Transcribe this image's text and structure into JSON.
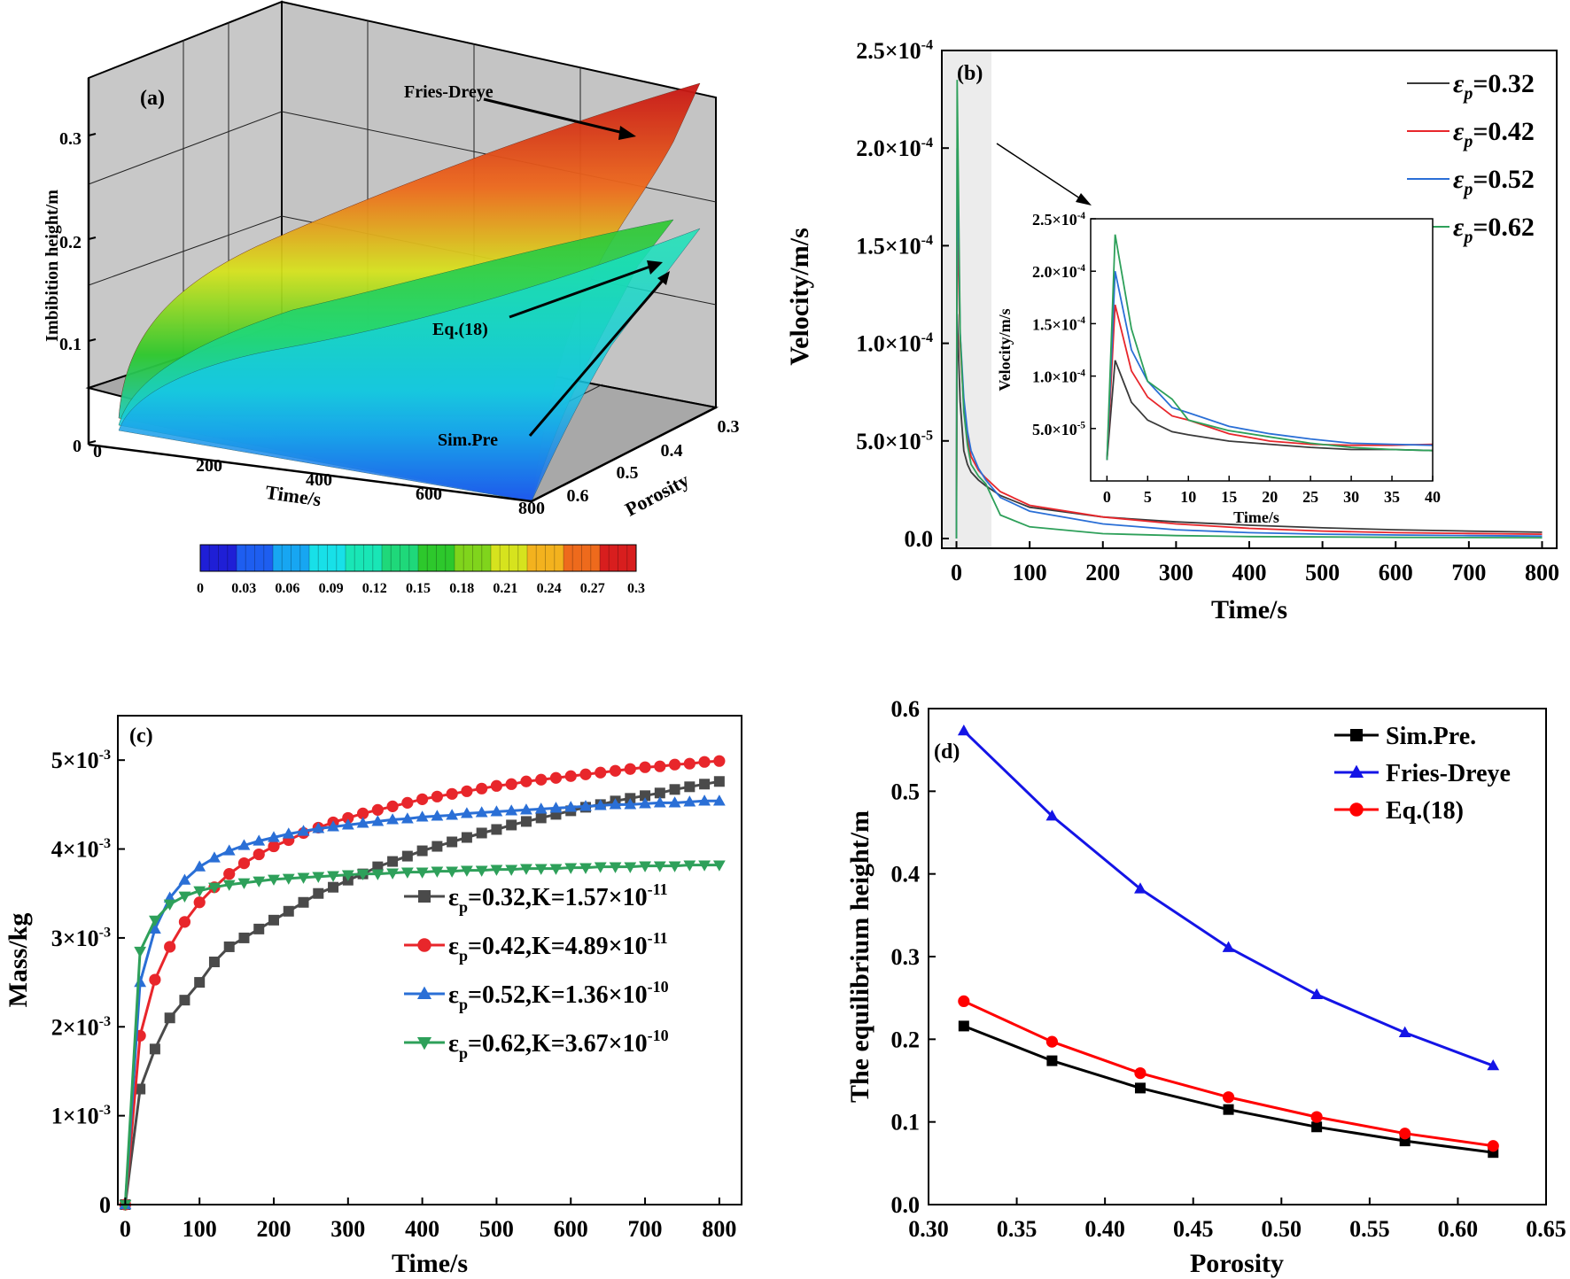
{
  "chart_data": [
    {
      "id": "a",
      "type": "surface3d",
      "panel_label": "(a)",
      "zlabel": "Imbibition height/m",
      "xlabel": "Time/s",
      "ylabel": "Porosity",
      "x_ticks": [
        "0",
        "200",
        "400",
        "600",
        "800"
      ],
      "y_ticks": [
        "0.3",
        "0.4",
        "0.5",
        "0.6"
      ],
      "z_ticks": [
        "0",
        "0.1",
        "0.2",
        "0.3"
      ],
      "annotations": [
        "Fries-Dreye",
        "Eq.(18)",
        "Sim.Pre"
      ],
      "colorbar_ticks": [
        "0",
        "0.03",
        "0.06",
        "0.09",
        "0.12",
        "0.15",
        "0.18",
        "0.21",
        "0.24",
        "0.27",
        "0.3"
      ],
      "colorbar_colors": [
        "#1f1fd6",
        "#1e5ef0",
        "#17a6f2",
        "#18e0e8",
        "#19e6b6",
        "#1fd87a",
        "#2dc82c",
        "#80d41c",
        "#d6e31e",
        "#f3b21e",
        "#ee6a1c",
        "#d81e1e"
      ],
      "surfaces": [
        {
          "name": "Fries-Dreye",
          "max_height": 0.35
        },
        {
          "name": "Eq.(18)",
          "max_height": 0.22
        },
        {
          "name": "Sim.Pre",
          "max_height": 0.19
        }
      ]
    },
    {
      "id": "b",
      "type": "line",
      "panel_label": "(b)",
      "xlabel": "Time/s",
      "ylabel": "Velocity/m/s",
      "xlim": [
        -20,
        820
      ],
      "ylim": [
        -5e-06,
        0.00025
      ],
      "x_ticks": [
        "0",
        "100",
        "200",
        "300",
        "400",
        "500",
        "600",
        "700",
        "800"
      ],
      "y_ticks": [
        {
          "mant": "0.0",
          "exp": ""
        },
        {
          "mant": "5.0×10",
          "exp": "-5"
        },
        {
          "mant": "1.0×10",
          "exp": "-4"
        },
        {
          "mant": "1.5×10",
          "exp": "-4"
        },
        {
          "mant": "2.0×10",
          "exp": "-4"
        },
        {
          "mant": "2.5×10",
          "exp": "-4"
        }
      ],
      "legend": [
        {
          "prefix": "ε",
          "sub": "p",
          "suffix": "=0.32",
          "color": "#3a3a3a"
        },
        {
          "prefix": "ε",
          "sub": "p",
          "suffix": "=0.42",
          "color": "#e8262b"
        },
        {
          "prefix": "ε",
          "sub": "p",
          "suffix": "=0.52",
          "color": "#2a6fd6"
        },
        {
          "prefix": "ε",
          "sub": "p",
          "suffix": "=0.62",
          "color": "#2ea05a"
        }
      ],
      "series": [
        {
          "name": "εp=0.32",
          "color": "#3a3a3a",
          "x": [
            0,
            1,
            5,
            10,
            15,
            20,
            30,
            40,
            60,
            100,
            200,
            300,
            400,
            500,
            600,
            700,
            800
          ],
          "y": [
            0,
            0.000115,
            7e-05,
            4.5e-05,
            3.8e-05,
            3.4e-05,
            3e-05,
            2.7e-05,
            2.2e-05,
            1.6e-05,
            1.1e-05,
            8.5e-06,
            6.8e-06,
            5.5e-06,
            4.5e-06,
            3.8e-06,
            3.2e-06
          ]
        },
        {
          "name": "εp=0.42",
          "color": "#e8262b",
          "x": [
            0,
            1,
            5,
            10,
            15,
            20,
            30,
            40,
            60,
            100,
            200,
            300,
            400,
            500,
            600,
            700,
            800
          ],
          "y": [
            0,
            0.000168,
            0.0001,
            6.8e-05,
            5.2e-05,
            4.2e-05,
            3.5e-05,
            3.1e-05,
            2.4e-05,
            1.7e-05,
            1.1e-05,
            7.5e-06,
            5.2e-06,
            3.8e-06,
            3e-06,
            2.6e-06,
            2.2e-06
          ]
        },
        {
          "name": "εp=0.52",
          "color": "#2a6fd6",
          "x": [
            0,
            1,
            5,
            10,
            15,
            20,
            30,
            40,
            60,
            100,
            200,
            300,
            400,
            500,
            600,
            700,
            800
          ],
          "y": [
            0,
            0.0002,
            0.000105,
            7.2e-05,
            5.5e-05,
            4.5e-05,
            3.6e-05,
            3e-05,
            2.1e-05,
            1.4e-05,
            7.5e-06,
            4.5e-06,
            3e-06,
            2.2e-06,
            1.8e-06,
            1.5e-06,
            1.2e-06
          ]
        },
        {
          "name": "εp=0.62",
          "color": "#2ea05a",
          "x": [
            0,
            1,
            5,
            10,
            15,
            20,
            30,
            40,
            60,
            100,
            200,
            300,
            400,
            500,
            600,
            700,
            800
          ],
          "y": [
            0,
            0.000235,
            0.000105,
            6.5e-05,
            4.8e-05,
            3.8e-05,
            3.2e-05,
            2.8e-05,
            1.2e-05,
            6e-06,
            2.5e-06,
            1.5e-06,
            1e-06,
            8e-07,
            6e-07,
            5e-07,
            4e-07
          ]
        }
      ],
      "inset": {
        "xlabel": "Time/s",
        "ylabel": "Velocity/m/s",
        "xlim": [
          -2,
          40
        ],
        "ylim": [
          0,
          0.00025
        ],
        "x_ticks": [
          "0",
          "5",
          "10",
          "15",
          "20",
          "25",
          "30",
          "35",
          "40"
        ],
        "y_ticks": [
          {
            "mant": "5.0×10",
            "exp": "-5"
          },
          {
            "mant": "1.0×10",
            "exp": "-4"
          },
          {
            "mant": "1.5×10",
            "exp": "-4"
          },
          {
            "mant": "2.0×10",
            "exp": "-4"
          },
          {
            "mant": "2.5×10",
            "exp": "-4"
          }
        ],
        "series": [
          {
            "name": "εp=0.32",
            "color": "#3a3a3a",
            "x": [
              0,
              1,
              3,
              5,
              8,
              10,
              15,
              20,
              25,
              30,
              35,
              40
            ],
            "y": [
              2e-05,
              0.000115,
              7.5e-05,
              5.8e-05,
              4.7e-05,
              4.4e-05,
              3.8e-05,
              3.5e-05,
              3.2e-05,
              3e-05,
              3e-05,
              2.9e-05
            ]
          },
          {
            "name": "εp=0.42",
            "color": "#e8262b",
            "x": [
              0,
              1,
              3,
              5,
              8,
              10,
              15,
              20,
              25,
              30,
              35,
              40
            ],
            "y": [
              2e-05,
              0.000168,
              0.000105,
              8e-05,
              6.2e-05,
              5.8e-05,
              4.5e-05,
              3.8e-05,
              3.5e-05,
              3.4e-05,
              3.4e-05,
              3.5e-05
            ]
          },
          {
            "name": "εp=0.52",
            "color": "#2a6fd6",
            "x": [
              0,
              1,
              3,
              5,
              8,
              10,
              15,
              20,
              25,
              30,
              35,
              40
            ],
            "y": [
              2e-05,
              0.0002,
              0.000125,
              9.5e-05,
              7e-05,
              6.5e-05,
              5.2e-05,
              4.5e-05,
              4e-05,
              3.6e-05,
              3.5e-05,
              3.4e-05
            ]
          },
          {
            "name": "εp=0.62",
            "color": "#2ea05a",
            "x": [
              0,
              1,
              3,
              5,
              8,
              10,
              15,
              20,
              25,
              30,
              35,
              40
            ],
            "y": [
              2e-05,
              0.000235,
              0.000145,
              9.5e-05,
              7.8e-05,
              5.8e-05,
              4.8e-05,
              4.2e-05,
              3.6e-05,
              3.2e-05,
              3e-05,
              2.9e-05
            ]
          }
        ]
      }
    },
    {
      "id": "c",
      "type": "line",
      "panel_label": "(c)",
      "xlabel": "Time/s",
      "ylabel": "Mass/kg",
      "xlim": [
        -10,
        830
      ],
      "ylim": [
        0,
        0.0055
      ],
      "x_ticks": [
        "0",
        "100",
        "200",
        "300",
        "400",
        "500",
        "600",
        "700",
        "800"
      ],
      "y_ticks": [
        {
          "mant": "0",
          "exp": ""
        },
        {
          "mant": "1×10",
          "exp": "-3"
        },
        {
          "mant": "2×10",
          "exp": "-3"
        },
        {
          "mant": "3×10",
          "exp": "-3"
        },
        {
          "mant": "4×10",
          "exp": "-3"
        },
        {
          "mant": "5×10",
          "exp": "-3"
        }
      ],
      "legend": [
        {
          "prefix": "ε",
          "sub": "p",
          "suffix": "=0.32,K=1.57×10",
          "exp": "-11",
          "color": "#4a4a4a",
          "marker": "square"
        },
        {
          "prefix": "ε",
          "sub": "p",
          "suffix": "=0.42,K=4.89×10",
          "exp": "-11",
          "color": "#e8262b",
          "marker": "circle"
        },
        {
          "prefix": "ε",
          "sub": "p",
          "suffix": "=0.52,K=1.36×10",
          "exp": "-10",
          "color": "#2a6fd6",
          "marker": "triangle-up"
        },
        {
          "prefix": "ε",
          "sub": "p",
          "suffix": "=0.62,K=3.67×10",
          "exp": "-10",
          "color": "#2ea05a",
          "marker": "triangle-down"
        }
      ],
      "series": [
        {
          "name": "εp=0.32,K=1.57×10-11",
          "color": "#4a4a4a",
          "marker": "square",
          "x": [
            0,
            20,
            40,
            60,
            80,
            100,
            120,
            140,
            160,
            180,
            200,
            220,
            240,
            260,
            280,
            300,
            320,
            340,
            360,
            380,
            400,
            420,
            440,
            460,
            480,
            500,
            520,
            540,
            560,
            580,
            600,
            620,
            640,
            660,
            680,
            700,
            720,
            740,
            760,
            780,
            800
          ],
          "y": [
            0,
            0.0013,
            0.00175,
            0.0021,
            0.0023,
            0.0025,
            0.00273,
            0.0029,
            0.003,
            0.0031,
            0.0032,
            0.0033,
            0.0034,
            0.0035,
            0.00357,
            0.00365,
            0.00372,
            0.0038,
            0.00386,
            0.00392,
            0.00398,
            0.00403,
            0.00408,
            0.00413,
            0.00418,
            0.00422,
            0.00427,
            0.00431,
            0.00435,
            0.00439,
            0.00443,
            0.00447,
            0.0045,
            0.00454,
            0.00457,
            0.0046,
            0.00463,
            0.00467,
            0.0047,
            0.00473,
            0.00476
          ]
        },
        {
          "name": "εp=0.42,K=4.89×10-11",
          "color": "#e8262b",
          "marker": "circle",
          "x": [
            0,
            20,
            40,
            60,
            80,
            100,
            120,
            140,
            160,
            180,
            200,
            220,
            240,
            260,
            280,
            300,
            320,
            340,
            360,
            380,
            400,
            420,
            440,
            460,
            480,
            500,
            520,
            540,
            560,
            580,
            600,
            620,
            640,
            660,
            680,
            700,
            720,
            740,
            760,
            780,
            800
          ],
          "y": [
            0,
            0.0019,
            0.00253,
            0.0029,
            0.00318,
            0.0034,
            0.00357,
            0.00372,
            0.00384,
            0.00394,
            0.00403,
            0.0041,
            0.00418,
            0.00424,
            0.0043,
            0.00435,
            0.0044,
            0.00444,
            0.00448,
            0.00452,
            0.00456,
            0.00459,
            0.00462,
            0.00465,
            0.00468,
            0.00471,
            0.00473,
            0.00476,
            0.00478,
            0.0048,
            0.00482,
            0.00484,
            0.00486,
            0.00488,
            0.0049,
            0.00492,
            0.00493,
            0.00495,
            0.00496,
            0.00498,
            0.00499
          ]
        },
        {
          "name": "εp=0.52,K=1.36×10-10",
          "color": "#2a6fd6",
          "marker": "triangle-up",
          "x": [
            0,
            20,
            40,
            60,
            80,
            100,
            120,
            140,
            160,
            180,
            200,
            220,
            240,
            260,
            280,
            300,
            320,
            340,
            360,
            380,
            400,
            420,
            440,
            460,
            480,
            500,
            520,
            540,
            560,
            580,
            600,
            620,
            640,
            660,
            680,
            700,
            720,
            740,
            760,
            780,
            800
          ],
          "y": [
            0,
            0.0025,
            0.0031,
            0.00345,
            0.00365,
            0.0038,
            0.0039,
            0.00398,
            0.00404,
            0.00409,
            0.00413,
            0.00417,
            0.0042,
            0.00423,
            0.00425,
            0.00427,
            0.00429,
            0.00431,
            0.00433,
            0.00434,
            0.00436,
            0.00437,
            0.00438,
            0.0044,
            0.00441,
            0.00442,
            0.00443,
            0.00444,
            0.00445,
            0.00446,
            0.00447,
            0.00448,
            0.00449,
            0.0045,
            0.0045,
            0.00451,
            0.00452,
            0.00452,
            0.00453,
            0.00454,
            0.00454
          ]
        },
        {
          "name": "εp=0.62,K=3.67×10-10",
          "color": "#2ea05a",
          "marker": "triangle-down",
          "x": [
            0,
            20,
            40,
            60,
            80,
            100,
            120,
            140,
            160,
            180,
            200,
            220,
            240,
            260,
            280,
            300,
            320,
            340,
            360,
            380,
            400,
            420,
            440,
            460,
            480,
            500,
            520,
            540,
            560,
            580,
            600,
            620,
            640,
            660,
            680,
            700,
            720,
            740,
            760,
            780,
            800
          ],
          "y": [
            0,
            0.00285,
            0.0032,
            0.00338,
            0.00347,
            0.00353,
            0.00357,
            0.0036,
            0.00362,
            0.00364,
            0.00366,
            0.00367,
            0.00368,
            0.00369,
            0.0037,
            0.00371,
            0.00372,
            0.00372,
            0.00373,
            0.00374,
            0.00374,
            0.00375,
            0.00375,
            0.00376,
            0.00376,
            0.00377,
            0.00377,
            0.00378,
            0.00378,
            0.00378,
            0.00379,
            0.00379,
            0.0038,
            0.0038,
            0.0038,
            0.00381,
            0.00381,
            0.00381,
            0.00382,
            0.00382,
            0.00382
          ]
        }
      ]
    },
    {
      "id": "d",
      "type": "line",
      "panel_label": "(d)",
      "xlabel": "Porosity",
      "ylabel": "The equilibrium height/m",
      "xlim": [
        0.3,
        0.65
      ],
      "ylim": [
        0,
        0.6
      ],
      "x_ticks": [
        "0.30",
        "0.35",
        "0.40",
        "0.45",
        "0.50",
        "0.55",
        "0.60",
        "0.65"
      ],
      "y_ticks": [
        "0.0",
        "0.1",
        "0.2",
        "0.3",
        "0.4",
        "0.5",
        "0.6"
      ],
      "legend": [
        {
          "label": "Sim.Pre.",
          "color": "#000000",
          "marker": "square"
        },
        {
          "label": "Fries-Dreye",
          "color": "#1414e6",
          "marker": "triangle-up"
        },
        {
          "label": "Eq.(18)",
          "color": "#ff0000",
          "marker": "circle"
        }
      ],
      "series": [
        {
          "name": "Sim.Pre.",
          "color": "#000000",
          "marker": "square",
          "x": [
            0.32,
            0.37,
            0.42,
            0.47,
            0.52,
            0.57,
            0.62
          ],
          "y": [
            0.216,
            0.174,
            0.141,
            0.115,
            0.094,
            0.077,
            0.063
          ]
        },
        {
          "name": "Fries-Dreye",
          "color": "#1414e6",
          "marker": "triangle-up",
          "x": [
            0.32,
            0.37,
            0.42,
            0.47,
            0.52,
            0.57,
            0.62
          ],
          "y": [
            0.573,
            0.47,
            0.382,
            0.311,
            0.254,
            0.208,
            0.168
          ]
        },
        {
          "name": "Eq.(18)",
          "color": "#ff0000",
          "marker": "circle",
          "x": [
            0.32,
            0.37,
            0.42,
            0.47,
            0.52,
            0.57,
            0.62
          ],
          "y": [
            0.246,
            0.197,
            0.159,
            0.13,
            0.106,
            0.086,
            0.071
          ]
        }
      ]
    }
  ]
}
